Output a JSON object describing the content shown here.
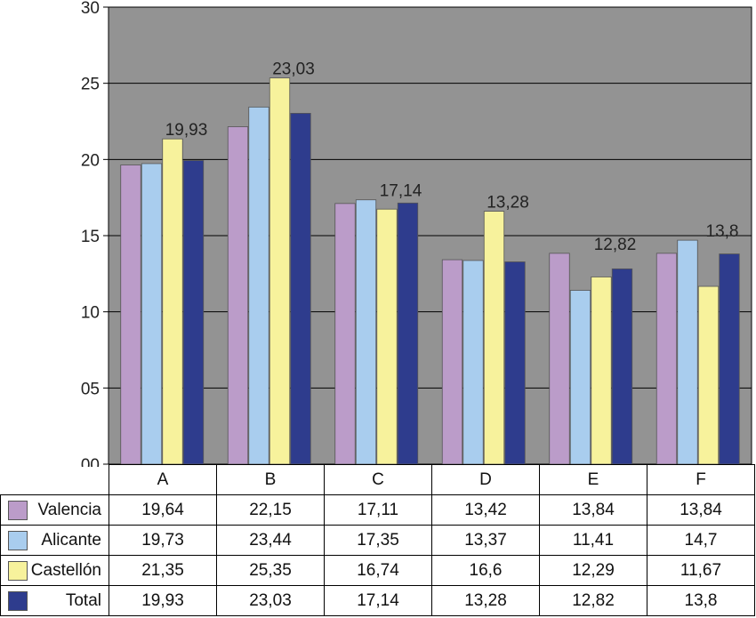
{
  "chart_data": {
    "type": "bar",
    "categories": [
      "A",
      "B",
      "C",
      "D",
      "E",
      "F"
    ],
    "series": [
      {
        "name": "Valencia",
        "color": "#bb9cc9",
        "values": [
          19.64,
          22.15,
          17.11,
          13.42,
          13.84,
          13.84
        ]
      },
      {
        "name": "Alicante",
        "color": "#a9cdee",
        "values": [
          19.73,
          23.44,
          17.35,
          13.37,
          11.41,
          14.7
        ]
      },
      {
        "name": "Castellón",
        "color": "#f7f29c",
        "values": [
          21.35,
          25.35,
          16.74,
          16.6,
          12.29,
          11.67
        ]
      },
      {
        "name": "Total",
        "color": "#2e3c8d",
        "values": [
          19.93,
          23.03,
          17.14,
          13.28,
          12.82,
          13.8
        ]
      }
    ],
    "table_values": [
      [
        "19,64",
        "22,15",
        "17,11",
        "13,42",
        "13,84",
        "13,84"
      ],
      [
        "19,73",
        "23,44",
        "17,35",
        "13,37",
        "11,41",
        "14,7"
      ],
      [
        "21,35",
        "25,35",
        "16,74",
        "16,6",
        "12,29",
        "11,67"
      ],
      [
        "19,93",
        "23,03",
        "17,14",
        "13,28",
        "12,82",
        "13,8"
      ]
    ],
    "data_labels": [
      "19,93",
      "23,03",
      "17,14",
      "13,28",
      "12,82",
      "13,8"
    ],
    "yticks": [
      "00",
      "05",
      "10",
      "15",
      "20",
      "25",
      "30"
    ],
    "ylim": [
      0,
      30
    ],
    "grid": true,
    "plot_background": "#939393",
    "legend_placement": "data table"
  }
}
